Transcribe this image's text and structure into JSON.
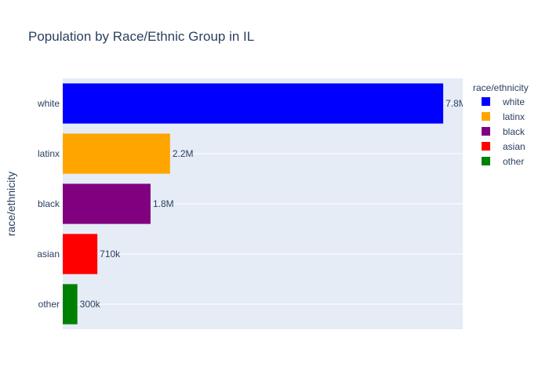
{
  "chart_data": {
    "type": "bar",
    "orientation": "horizontal",
    "title": "Population by Race/Ethnic Group in IL",
    "ylabel": "race/ethnicity",
    "xlabel": "",
    "categories": [
      "white",
      "latinx",
      "black",
      "asian",
      "other"
    ],
    "values": [
      7800000,
      2200000,
      1800000,
      710000,
      300000
    ],
    "value_labels": [
      "7.8M",
      "2.2M",
      "1.8M",
      "710k",
      "300k"
    ],
    "colors": [
      "#0000ff",
      "#ffa500",
      "#800080",
      "#ff0000",
      "#008000"
    ],
    "xlim": [
      0,
      8200000
    ],
    "grid": true,
    "legend": {
      "title": "race/ethnicity",
      "placement": "right",
      "entries": [
        "white",
        "latinx",
        "black",
        "asian",
        "other"
      ]
    }
  }
}
